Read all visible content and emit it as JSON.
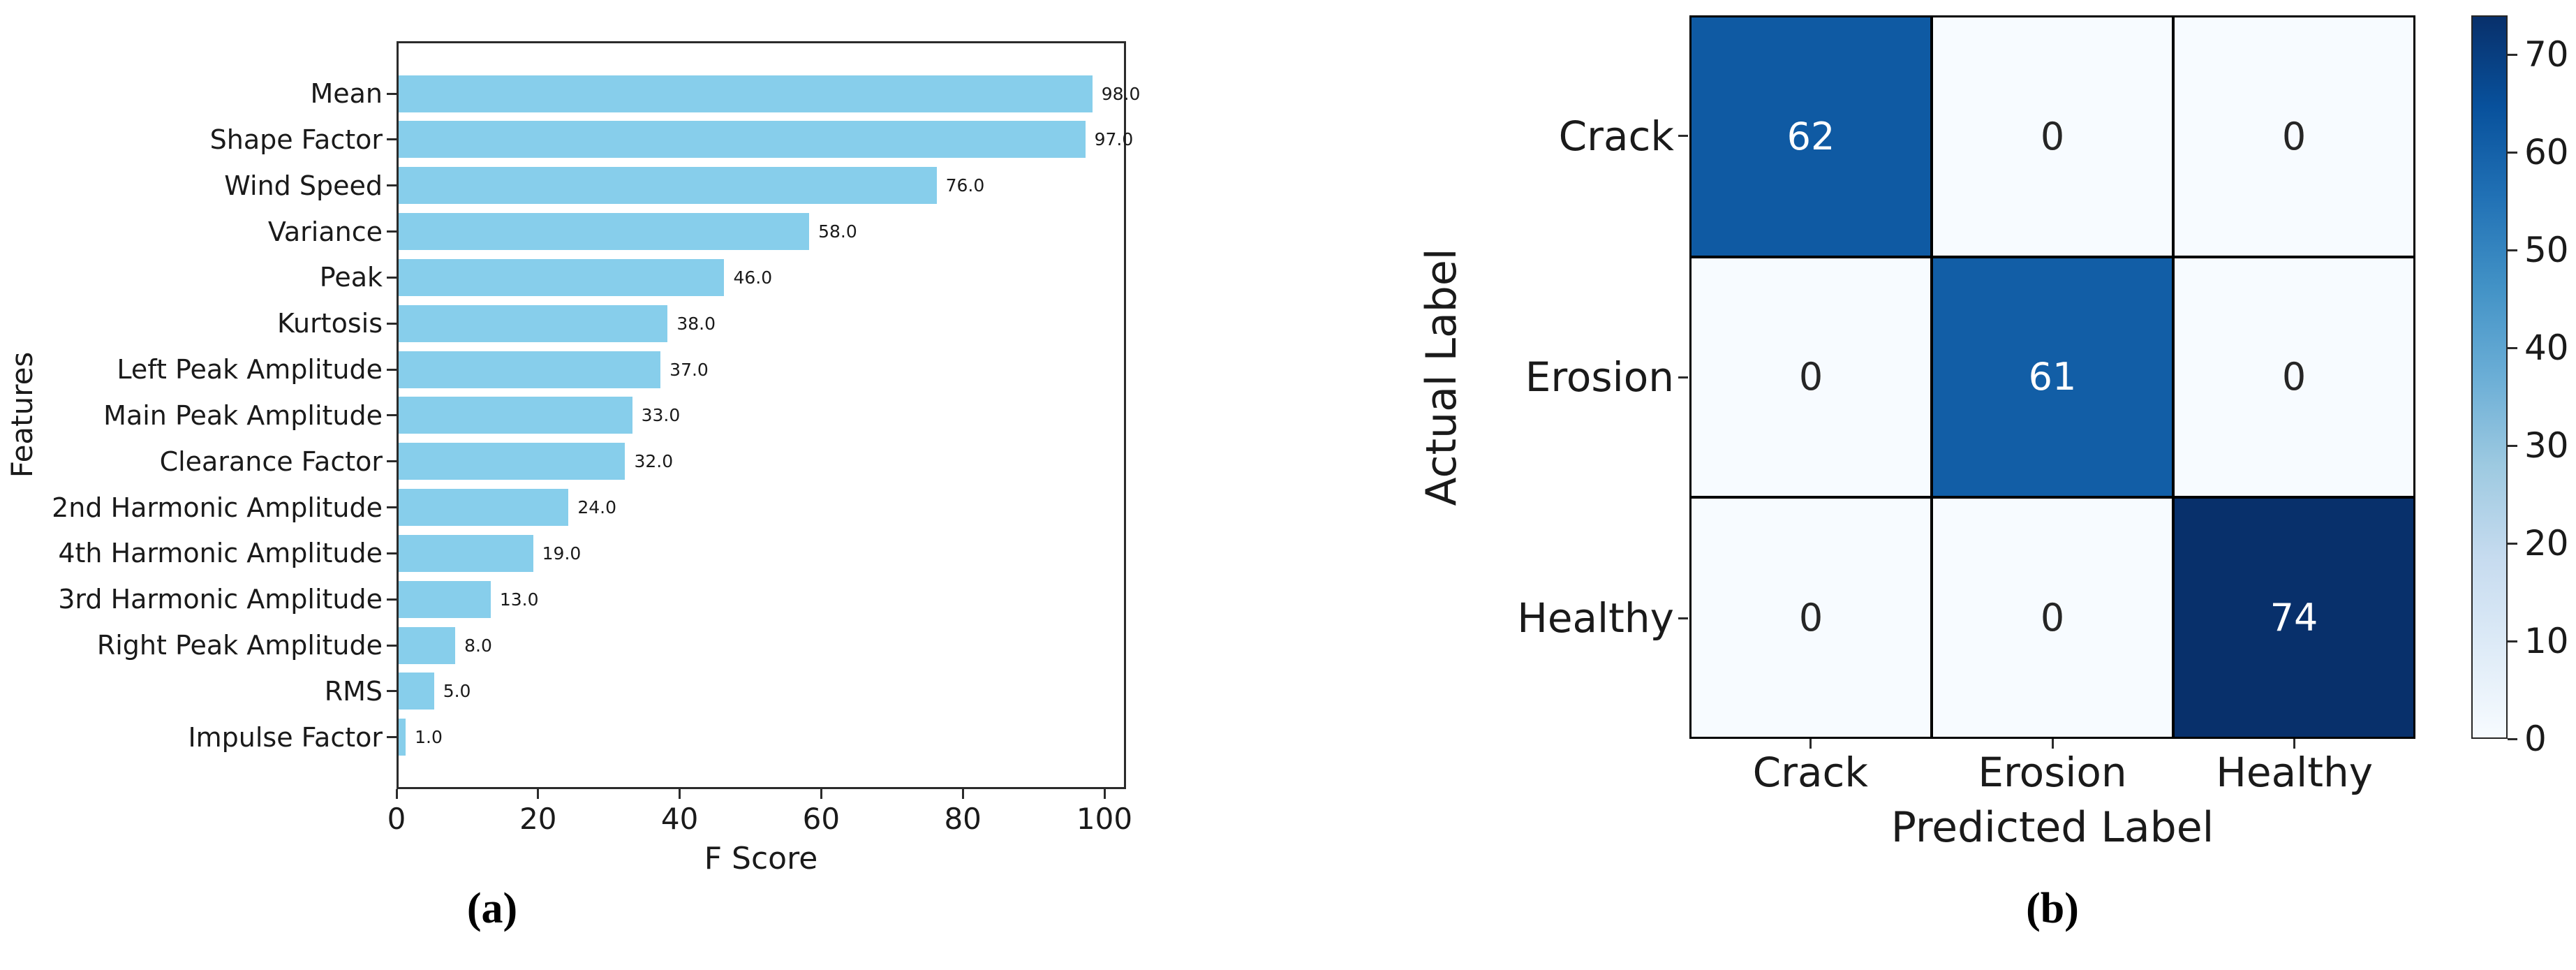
{
  "chart_data": [
    {
      "type": "bar",
      "orientation": "horizontal",
      "caption": "(a)",
      "xlabel": "F Score",
      "ylabel": "Features",
      "categories": [
        "Mean",
        "Shape Factor",
        "Wind Speed",
        "Variance",
        "Peak",
        "Kurtosis",
        "Left Peak Amplitude",
        "Main Peak Amplitude",
        "Clearance Factor",
        "2nd Harmonic Amplitude",
        "4th Harmonic Amplitude",
        "3rd Harmonic Amplitude",
        "Right Peak Amplitude",
        "RMS",
        "Impulse Factor"
      ],
      "values": [
        98.0,
        97.0,
        76.0,
        58.0,
        46.0,
        38.0,
        37.0,
        33.0,
        32.0,
        24.0,
        19.0,
        13.0,
        8.0,
        5.0,
        1.0
      ],
      "value_labels": [
        "98.0",
        "97.0",
        "76.0",
        "58.0",
        "46.0",
        "38.0",
        "37.0",
        "33.0",
        "32.0",
        "24.0",
        "19.0",
        "13.0",
        "8.0",
        "5.0",
        "1.0"
      ],
      "x_ticks": [
        0,
        20,
        40,
        60,
        80,
        100
      ],
      "xlim": [
        0,
        103
      ],
      "bar_color": "#87CEEB",
      "grid": false,
      "legend": false
    },
    {
      "type": "heatmap",
      "subtype": "confusion-matrix",
      "caption": "(b)",
      "xlabel": "Predicted Label",
      "ylabel": "Actual Label",
      "x_categories": [
        "Crack",
        "Erosion",
        "Healthy"
      ],
      "y_categories": [
        "Crack",
        "Erosion",
        "Healthy"
      ],
      "values": [
        [
          62,
          0,
          0
        ],
        [
          0,
          61,
          0
        ],
        [
          0,
          0,
          74
        ]
      ],
      "cell_colors": [
        [
          "#0f5aa3",
          "#f7fbff",
          "#f7fbff"
        ],
        [
          "#f7fbff",
          "#125ea6",
          "#f7fbff"
        ],
        [
          "#f7fbff",
          "#f7fbff",
          "#08306b"
        ]
      ],
      "annotation_color_light": "#ffffff",
      "annotation_color_dark": "#262626",
      "colormap": "Blues",
      "vmin": 0,
      "vmax": 74,
      "colorbar_ticks": [
        0,
        10,
        20,
        30,
        40,
        50,
        60,
        70
      ],
      "colorbar_gradient_top_to_bottom": [
        "#08306b",
        "#08519c",
        "#2171b5",
        "#4292c6",
        "#6baed6",
        "#9ecae1",
        "#c6dbef",
        "#deebf7",
        "#f7fbff"
      ]
    }
  ]
}
